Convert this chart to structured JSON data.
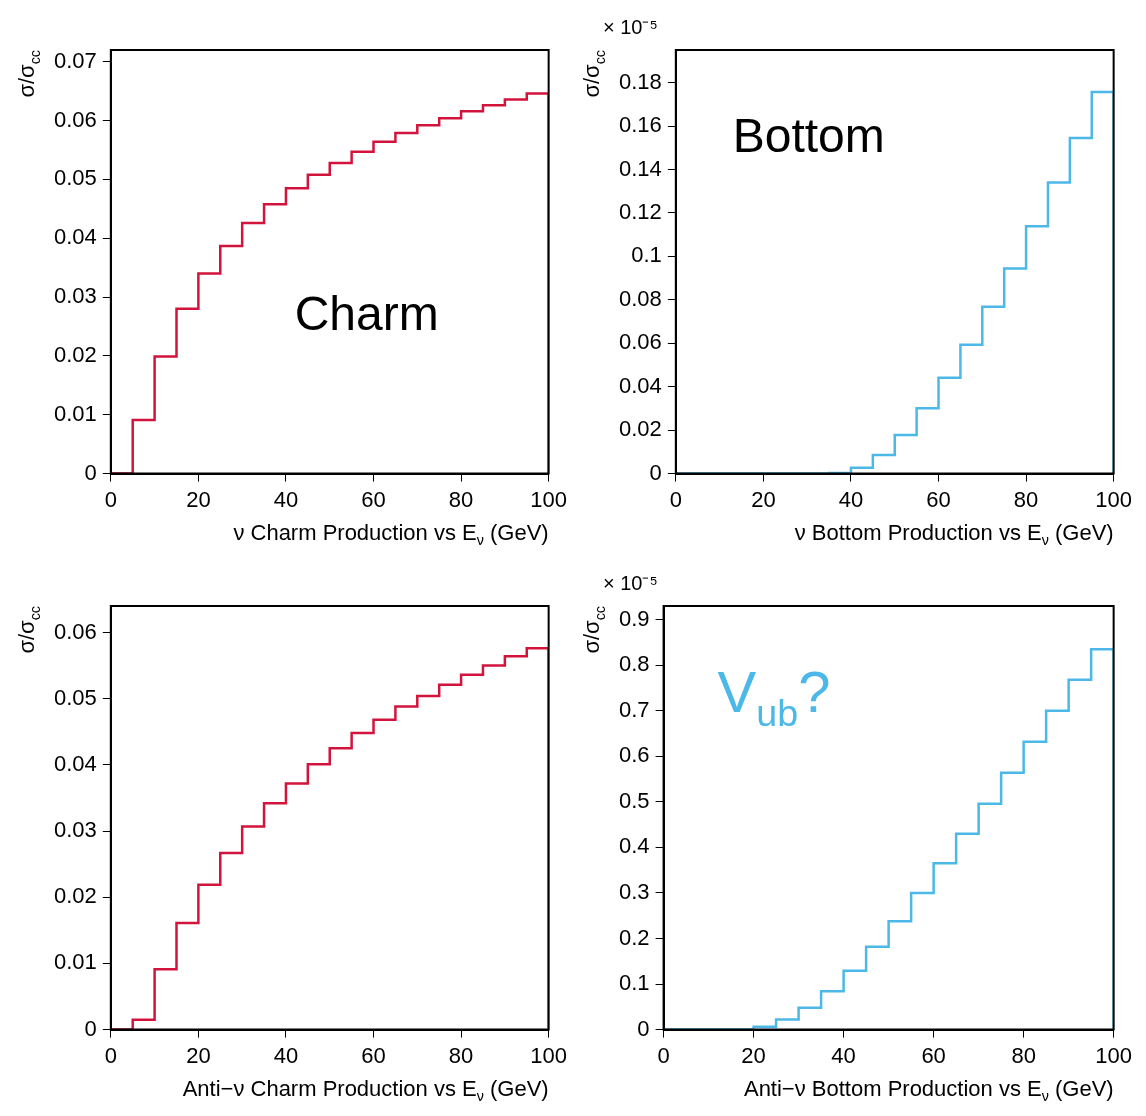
{
  "chart_data": [
    {
      "type": "histogram",
      "xlabel": "ν Charm Production vs E$_{ν}$ (GeV)",
      "ylabel": "σ/σ$_{cc}$",
      "color": "#d2143c",
      "annotations": [
        "Charm"
      ],
      "bins": [
        0,
        5,
        10,
        15,
        20,
        25,
        30,
        35,
        40,
        45,
        50,
        55,
        60,
        65,
        70,
        75,
        80,
        85,
        90,
        95,
        100
      ],
      "values": [
        0,
        0.0091,
        0.0199,
        0.028,
        0.034,
        0.0387,
        0.0426,
        0.0458,
        0.0485,
        0.0508,
        0.0528,
        0.0547,
        0.0564,
        0.0579,
        0.0592,
        0.0604,
        0.0616,
        0.0626,
        0.0636,
        0.0646
      ],
      "xlim": [
        0,
        100
      ],
      "xticks": [
        0,
        20,
        40,
        60,
        80,
        100
      ],
      "ylim": [
        0,
        0.072
      ],
      "yticks": [
        0,
        0.01,
        0.02,
        0.03,
        0.04,
        0.05,
        0.06,
        0.07
      ]
    },
    {
      "type": "histogram",
      "xlabel": "ν Bottom Production vs E$_{ν}$ (GeV)",
      "ylabel": "σ/σ$_{cc}$",
      "color": "#4cb8e8",
      "annotations": [
        "× 10⁻⁵",
        "Bottom"
      ],
      "bins": [
        0,
        5,
        10,
        15,
        20,
        25,
        30,
        35,
        40,
        45,
        50,
        55,
        60,
        65,
        70,
        75,
        80,
        85,
        90,
        95,
        100
      ],
      "values": [
        0,
        0,
        0,
        0,
        0,
        0,
        0,
        0.0003,
        0.0027,
        0.0086,
        0.0178,
        0.0301,
        0.0441,
        0.0593,
        0.0768,
        0.0944,
        0.1139,
        0.134,
        0.1545,
        0.1757
      ],
      "xlim": [
        0,
        100
      ],
      "xticks": [
        0,
        20,
        40,
        60,
        80,
        100
      ],
      "ylim": [
        0,
        0.195
      ],
      "yticks": [
        0,
        0.02,
        0.04,
        0.06,
        0.08,
        0.1,
        0.12,
        0.14,
        0.16,
        0.18
      ]
    },
    {
      "type": "histogram",
      "xlabel": "Anti−ν Charm Production vs E$_{ν}$ (GeV)",
      "ylabel": "σ/σ$_{cc}$",
      "color": "#d2143c",
      "bins": [
        0,
        5,
        10,
        15,
        20,
        25,
        30,
        35,
        40,
        45,
        50,
        55,
        60,
        65,
        70,
        75,
        80,
        85,
        90,
        95,
        100
      ],
      "values": [
        0,
        0.0015,
        0.0091,
        0.0161,
        0.0219,
        0.0267,
        0.0307,
        0.0342,
        0.0372,
        0.0401,
        0.0425,
        0.0448,
        0.0468,
        0.0488,
        0.0504,
        0.0521,
        0.0536,
        0.055,
        0.0564,
        0.0576
      ],
      "xlim": [
        0,
        100
      ],
      "xticks": [
        0,
        20,
        40,
        60,
        80,
        100
      ],
      "ylim": [
        0,
        0.064
      ],
      "yticks": [
        0,
        0.01,
        0.02,
        0.03,
        0.04,
        0.05,
        0.06
      ]
    },
    {
      "type": "histogram",
      "xlabel": "Anti−ν Bottom Production vs E$_{ν}$ (GeV)",
      "ylabel": "σ/σ$_{cc}$",
      "color": "#4cb8e8",
      "annotations": [
        "× 10⁻⁵",
        "V$_{ub}$?"
      ],
      "bins": [
        0,
        5,
        10,
        15,
        20,
        25,
        30,
        35,
        40,
        45,
        50,
        55,
        60,
        65,
        70,
        75,
        80,
        85,
        90,
        95,
        100
      ],
      "values": [
        0,
        0,
        0,
        0,
        0.006,
        0.022,
        0.048,
        0.084,
        0.129,
        0.182,
        0.238,
        0.3,
        0.365,
        0.43,
        0.496,
        0.564,
        0.632,
        0.7,
        0.768,
        0.835
      ],
      "xlim": [
        0,
        100
      ],
      "xticks": [
        0,
        20,
        40,
        60,
        80,
        100
      ],
      "ylim": [
        0,
        0.93
      ],
      "yticks": [
        0,
        0.1,
        0.2,
        0.3,
        0.4,
        0.5,
        0.6,
        0.7,
        0.8,
        0.9
      ]
    }
  ]
}
